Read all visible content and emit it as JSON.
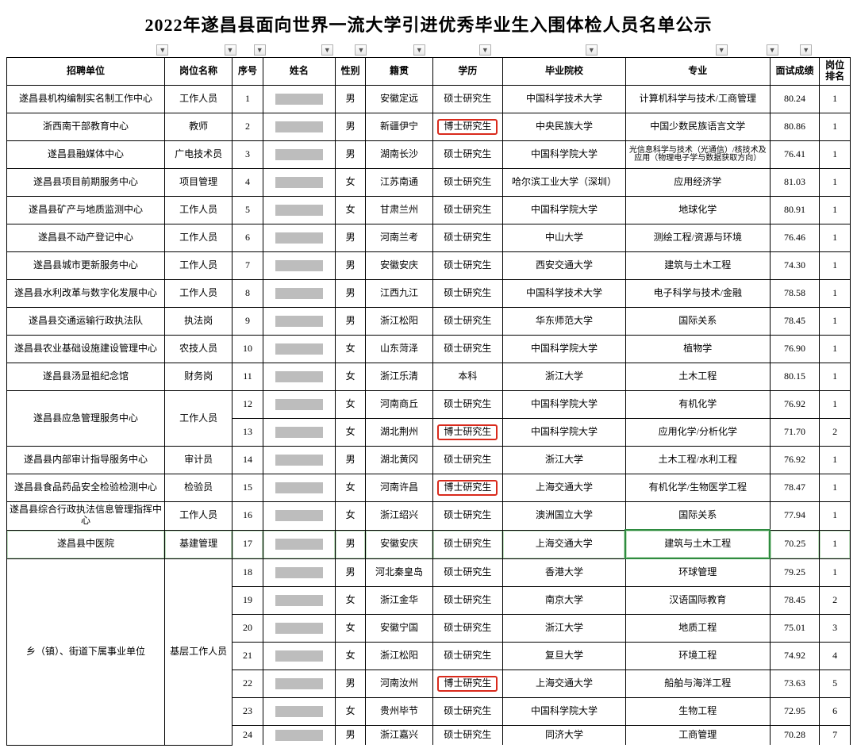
{
  "title": "2022年遂昌县面向世界一流大学引进优秀毕业生入围体检人员名单公示",
  "headers": {
    "unit": "招聘单位",
    "post": "岗位名称",
    "no": "序号",
    "name": "姓名",
    "sex": "性别",
    "origin": "籍贯",
    "edu": "学历",
    "school": "毕业院校",
    "major": "专业",
    "score": "面试成绩",
    "rank": "岗位排名"
  },
  "rows": [
    {
      "unit": "遂昌县机构编制实名制工作中心",
      "post": "工作人员",
      "no": "1",
      "sex": "男",
      "origin": "安徽定远",
      "edu": "硕士研究生",
      "school": "中国科学技术大学",
      "major": "计算机科学与技术/工商管理",
      "score": "80.24",
      "rank": "1"
    },
    {
      "unit": "浙西南干部教育中心",
      "post": "教师",
      "no": "2",
      "sex": "男",
      "origin": "新疆伊宁",
      "edu": "博士研究生",
      "edu_hl": true,
      "school": "中央民族大学",
      "major": "中国少数民族语言文学",
      "score": "80.86",
      "rank": "1"
    },
    {
      "unit": "遂昌县融媒体中心",
      "post": "广电技术员",
      "no": "3",
      "sex": "男",
      "origin": "湖南长沙",
      "edu": "硕士研究生",
      "school": "中国科学院大学",
      "major": "光信息科学与技术（光通信）/核技术及应用（物理电子学与数据获取方向）",
      "major_small": true,
      "score": "76.41",
      "rank": "1"
    },
    {
      "unit": "遂昌县项目前期服务中心",
      "post": "项目管理",
      "no": "4",
      "sex": "女",
      "origin": "江苏南通",
      "edu": "硕士研究生",
      "school": "哈尔滨工业大学（深圳）",
      "major": "应用经济学",
      "score": "81.03",
      "rank": "1"
    },
    {
      "unit": "遂昌县矿产与地质监测中心",
      "post": "工作人员",
      "no": "5",
      "sex": "女",
      "origin": "甘肃兰州",
      "edu": "硕士研究生",
      "school": "中国科学院大学",
      "major": "地球化学",
      "score": "80.91",
      "rank": "1"
    },
    {
      "unit": "遂昌县不动产登记中心",
      "post": "工作人员",
      "no": "6",
      "sex": "男",
      "origin": "河南兰考",
      "edu": "硕士研究生",
      "school": "中山大学",
      "major": "测绘工程/资源与环境",
      "score": "76.46",
      "rank": "1"
    },
    {
      "unit": "遂昌县城市更新服务中心",
      "post": "工作人员",
      "no": "7",
      "sex": "男",
      "origin": "安徽安庆",
      "edu": "硕士研究生",
      "school": "西安交通大学",
      "major": "建筑与土木工程",
      "score": "74.30",
      "rank": "1"
    },
    {
      "unit": "遂昌县水利改革与数字化发展中心",
      "post": "工作人员",
      "no": "8",
      "sex": "男",
      "origin": "江西九江",
      "edu": "硕士研究生",
      "school": "中国科学技术大学",
      "major": "电子科学与技术/金融",
      "score": "78.58",
      "rank": "1"
    },
    {
      "unit": "遂昌县交通运输行政执法队",
      "post": "执法岗",
      "no": "9",
      "sex": "男",
      "origin": "浙江松阳",
      "edu": "硕士研究生",
      "school": "华东师范大学",
      "major": "国际关系",
      "score": "78.45",
      "rank": "1"
    },
    {
      "unit": "遂昌县农业基础设施建设管理中心",
      "post": "农技人员",
      "no": "10",
      "sex": "女",
      "origin": "山东菏泽",
      "edu": "硕士研究生",
      "school": "中国科学院大学",
      "major": "植物学",
      "score": "76.90",
      "rank": "1"
    },
    {
      "unit": "遂昌县汤显祖纪念馆",
      "post": "财务岗",
      "no": "11",
      "sex": "女",
      "origin": "浙江乐清",
      "edu": "本科",
      "school": "浙江大学",
      "major": "土木工程",
      "score": "80.15",
      "rank": "1"
    },
    {
      "unit": "遂昌县应急管理服务中心",
      "unit_rowspan": 2,
      "post": "工作人员",
      "post_rowspan": 2,
      "no": "12",
      "sex": "女",
      "origin": "河南商丘",
      "edu": "硕士研究生",
      "school": "中国科学院大学",
      "major": "有机化学",
      "score": "76.92",
      "rank": "1"
    },
    {
      "no": "13",
      "sex": "女",
      "origin": "湖北荆州",
      "edu": "博士研究生",
      "edu_hl": true,
      "school": "中国科学院大学",
      "major": "应用化学/分析化学",
      "score": "71.70",
      "rank": "2"
    },
    {
      "unit": "遂昌县内部审计指导服务中心",
      "post": "审计员",
      "no": "14",
      "sex": "男",
      "origin": "湖北黄冈",
      "edu": "硕士研究生",
      "school": "浙江大学",
      "major": "土木工程/水利工程",
      "score": "76.92",
      "rank": "1"
    },
    {
      "unit": "遂昌县食品药品安全检验检测中心",
      "post": "检验员",
      "no": "15",
      "sex": "女",
      "origin": "河南许昌",
      "edu": "博士研究生",
      "edu_hl": true,
      "school": "上海交通大学",
      "major": "有机化学/生物医学工程",
      "score": "78.47",
      "rank": "1"
    },
    {
      "unit": "遂昌县综合行政执法信息管理指挥中心",
      "post": "工作人员",
      "no": "16",
      "sex": "女",
      "origin": "浙江绍兴",
      "edu": "硕士研究生",
      "school": "澳洲国立大学",
      "major": "国际关系",
      "score": "77.94",
      "rank": "1"
    },
    {
      "unit": "遂昌县中医院",
      "post": "基建管理",
      "no": "17",
      "sex": "男",
      "origin": "安徽安庆",
      "edu": "硕士研究生",
      "school": "上海交通大学",
      "major": "建筑与土木工程",
      "major_green": true,
      "score": "70.25",
      "rank": "1",
      "greenrow": true
    },
    {
      "unit": "乡（镇）、街道下属事业单位",
      "unit_rowspan": 7,
      "post": "基层工作人员",
      "post_rowspan": 7,
      "no": "18",
      "sex": "男",
      "origin": "河北秦皇岛",
      "edu": "硕士研究生",
      "school": "香港大学",
      "major": "环球管理",
      "score": "79.25",
      "rank": "1"
    },
    {
      "no": "19",
      "sex": "女",
      "origin": "浙江金华",
      "edu": "硕士研究生",
      "school": "南京大学",
      "major": "汉语国际教育",
      "score": "78.45",
      "rank": "2"
    },
    {
      "no": "20",
      "sex": "女",
      "origin": "安徽宁国",
      "edu": "硕士研究生",
      "school": "浙江大学",
      "major": "地质工程",
      "score": "75.01",
      "rank": "3"
    },
    {
      "no": "21",
      "sex": "女",
      "origin": "浙江松阳",
      "edu": "硕士研究生",
      "school": "复旦大学",
      "major": "环境工程",
      "score": "74.92",
      "rank": "4"
    },
    {
      "no": "22",
      "sex": "男",
      "origin": "河南汝州",
      "edu": "博士研究生",
      "edu_hl": true,
      "school": "上海交通大学",
      "major": "船舶与海洋工程",
      "score": "73.63",
      "rank": "5"
    },
    {
      "no": "23",
      "sex": "女",
      "origin": "贵州毕节",
      "edu": "硕士研究生",
      "school": "中国科学院大学",
      "major": "生物工程",
      "score": "72.95",
      "rank": "6"
    },
    {
      "no": "24",
      "sex": "男",
      "origin": "浙江嘉兴",
      "edu": "硕士研究生",
      "school": "同济大学",
      "major": "工商管理",
      "score": "70.28",
      "rank": "7",
      "cut": true
    }
  ],
  "filter_positions_pct": [
    17.8,
    25.8,
    29.3,
    37.3,
    41.3,
    48.2,
    56.0,
    68.6,
    84.0,
    90.0,
    94.0
  ],
  "styling": {
    "title_fontsize": 22,
    "cell_fontsize": 12,
    "border_color": "#000000",
    "highlight_border": "#d92a1c",
    "green_border": "#2e8b40",
    "redacted_color": "#bdbdbd",
    "background": "#ffffff"
  }
}
